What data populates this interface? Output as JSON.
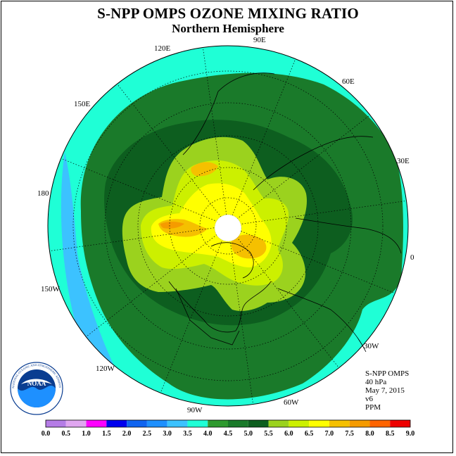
{
  "title": "S-NPP OMPS OZONE MIXING RATIO",
  "subtitle": "Northern Hemisphere",
  "meridian_labels": {
    "lon_90e": "90E",
    "lon_60e": "60E",
    "lon_30e": "30E",
    "lon_0": "0",
    "lon_30w": "30W",
    "lon_60w": "60W",
    "lon_90w": "90W",
    "lon_120w": "120W",
    "lon_150w": "150W",
    "lon_180": "180",
    "lon_150e": "150E",
    "lon_120e": "120E"
  },
  "info": {
    "instrument": "S-NPP OMPS",
    "level": "40 hPa",
    "date": "May 7, 2015",
    "version": "v6",
    "units": "PPM"
  },
  "logo": {
    "text": "NOAA",
    "ring_text": "NATIONAL OCEANIC AND ATMOSPHERIC ADMINISTRATION · U.S. DEPARTMENT OF COMMERCE"
  },
  "colorbar": {
    "ticks": [
      "0.0",
      "0.5",
      "1.0",
      "1.5",
      "2.0",
      "2.5",
      "3.0",
      "3.5",
      "4.0",
      "4.5",
      "5.0",
      "5.5",
      "6.0",
      "6.5",
      "7.0",
      "7.5",
      "8.0",
      "8.5",
      "9.0"
    ],
    "colors": [
      "#b57ce6",
      "#e0a6f0",
      "#ff00ff",
      "#0000ee",
      "#0f64f0",
      "#1e90ff",
      "#3cc2ff",
      "#1fffd6",
      "#2f9a2f",
      "#1a7a2a",
      "#0d5e1f",
      "#9bd21e",
      "#ccf000",
      "#ffff00",
      "#f5c000",
      "#f59b00",
      "#ff6400",
      "#ee0000",
      "#8b5a3c"
    ]
  },
  "map_colors": {
    "ocean_cyan": "#1fffd6",
    "sky_blue": "#3cc2ff",
    "green_45": "#1a7a2a",
    "green_50": "#0d5e1f",
    "lime_55": "#9bd21e",
    "yellowgreen_60": "#ccf000",
    "yellow_65": "#ffff00",
    "amber_70": "#f5c000",
    "orange_75": "#f59b00",
    "missing": "#ffffff"
  }
}
